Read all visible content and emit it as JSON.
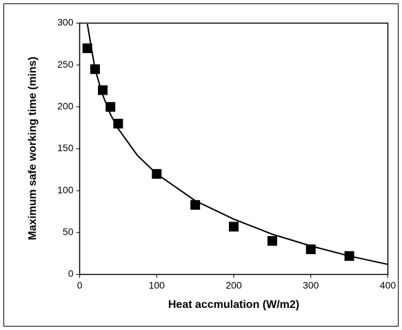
{
  "chart_data": {
    "type": "scatter",
    "x_label": "Heat accmulation (W/m2)",
    "y_label": "Maximum safe working time (mins)",
    "xlim": [
      0,
      400
    ],
    "xticks": [
      0,
      100,
      200,
      300,
      400
    ],
    "ylim": [
      0,
      300
    ],
    "yticks": [
      0,
      50,
      100,
      150,
      200,
      250,
      300
    ],
    "series": [
      {
        "color": "#000000",
        "marker": "square",
        "x": [
          10,
          20,
          30,
          40,
          50,
          100,
          150,
          200,
          250,
          300,
          350
        ],
        "values": [
          270,
          245,
          220,
          200,
          180,
          120,
          83,
          57,
          40,
          30,
          22
        ]
      },
      {
        "color": "#000000",
        "marker": "line",
        "x": [
          10,
          20,
          30,
          40,
          50,
          75,
          100,
          150,
          200,
          250,
          300,
          350,
          400
        ],
        "values": [
          299,
          245,
          214,
          191,
          174,
          142,
          120,
          88,
          66,
          48,
          34,
          22,
          12
        ]
      }
    ]
  }
}
